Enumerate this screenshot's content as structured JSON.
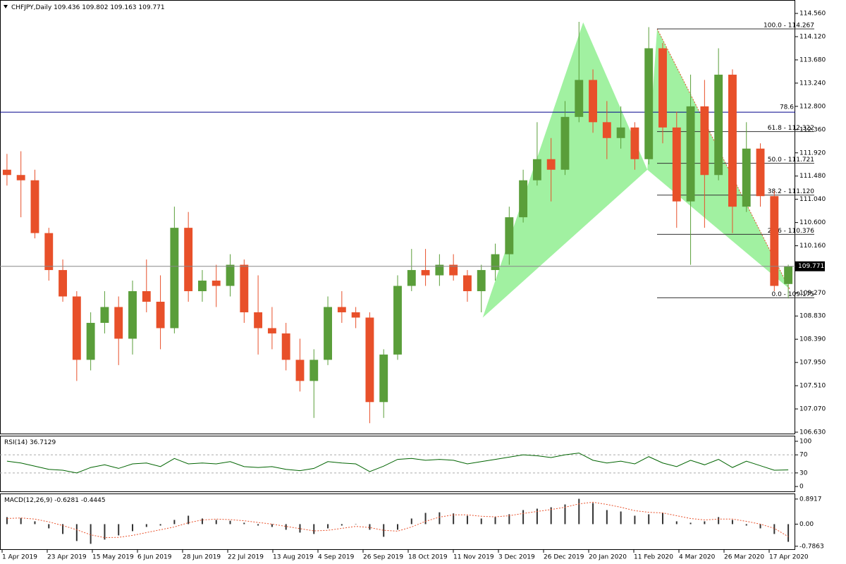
{
  "chart_data": {
    "type": "candlestick",
    "title": "CHFJPY,Daily",
    "up_color": "#5a9e3a",
    "down_color": "#e8502a",
    "open": [
      111.6,
      111.5,
      111.4,
      110.4,
      109.7,
      109.2,
      108.0,
      108.7,
      109.0,
      108.4,
      109.3,
      109.1,
      108.6,
      110.5,
      109.3,
      109.5,
      109.4,
      109.8,
      108.9,
      108.6,
      108.5,
      108.0,
      107.6,
      108.0,
      109.0,
      108.9,
      108.8,
      107.2,
      108.1,
      109.4,
      109.7,
      109.6,
      109.8,
      109.6,
      109.3,
      109.7,
      110.0,
      110.7,
      111.4,
      111.8,
      111.6,
      112.6,
      113.3,
      112.5,
      112.2,
      112.4,
      111.8,
      113.9,
      112.4,
      111.0,
      112.8,
      111.5,
      113.4,
      110.9,
      112.0,
      111.1,
      109.436
    ],
    "high": [
      111.9,
      111.95,
      111.6,
      110.5,
      109.9,
      109.3,
      108.9,
      109.3,
      109.2,
      109.5,
      109.9,
      109.6,
      110.9,
      110.8,
      109.7,
      109.8,
      110.0,
      109.9,
      109.6,
      109.0,
      108.7,
      108.4,
      108.2,
      109.2,
      109.3,
      109.0,
      108.9,
      108.2,
      109.6,
      110.1,
      110.1,
      110.0,
      110.0,
      109.7,
      109.8,
      110.2,
      110.9,
      111.6,
      112.5,
      112.2,
      112.9,
      114.4,
      113.5,
      112.9,
      112.8,
      112.5,
      114.3,
      114.0,
      112.7,
      113.4,
      113.3,
      113.9,
      113.5,
      112.5,
      112.1,
      111.2,
      109.802
    ],
    "low": [
      111.3,
      110.7,
      110.3,
      109.5,
      109.1,
      107.6,
      107.8,
      108.5,
      107.9,
      108.1,
      108.9,
      108.2,
      108.5,
      109.1,
      109.1,
      109.0,
      109.2,
      108.7,
      108.1,
      108.2,
      107.8,
      107.4,
      106.9,
      107.9,
      108.7,
      108.6,
      106.8,
      106.9,
      108.0,
      109.3,
      109.4,
      109.4,
      109.5,
      109.1,
      108.9,
      109.5,
      109.8,
      110.6,
      111.3,
      111.0,
      111.5,
      112.5,
      112.3,
      111.8,
      112.0,
      111.6,
      111.7,
      112.1,
      110.5,
      109.8,
      110.5,
      111.4,
      110.4,
      110.8,
      110.9,
      109.3,
      109.163
    ],
    "close": [
      111.5,
      111.4,
      110.4,
      109.7,
      109.2,
      108.0,
      108.7,
      109.0,
      108.4,
      109.3,
      109.1,
      108.6,
      110.5,
      109.3,
      109.5,
      109.4,
      109.8,
      108.9,
      108.6,
      108.5,
      108.0,
      107.6,
      108.0,
      109.0,
      108.9,
      108.8,
      107.2,
      108.1,
      109.4,
      109.7,
      109.6,
      109.8,
      109.6,
      109.3,
      109.7,
      110.0,
      110.7,
      111.4,
      111.8,
      111.6,
      112.6,
      113.3,
      112.5,
      112.2,
      112.4,
      111.8,
      113.9,
      112.4,
      111.0,
      112.8,
      111.5,
      113.4,
      110.9,
      112.0,
      111.1,
      109.4,
      109.771
    ],
    "ylim": [
      106.59,
      114.774
    ],
    "yticks": [
      {
        "value": 114.56,
        "label": "114.560"
      },
      {
        "value": 114.12,
        "label": "114.120"
      },
      {
        "value": 113.68,
        "label": "113.680"
      },
      {
        "value": 113.24,
        "label": "113.240"
      },
      {
        "value": 112.8,
        "label": "112.800"
      },
      {
        "value": 112.36,
        "label": "112.360"
      },
      {
        "value": 111.92,
        "label": "111.920"
      },
      {
        "value": 111.48,
        "label": "111.480"
      },
      {
        "value": 111.04,
        "label": "111.040"
      },
      {
        "value": 110.6,
        "label": "110.600"
      },
      {
        "value": 110.16,
        "label": "110.160"
      },
      {
        "value": 109.27,
        "label": "109.270"
      },
      {
        "value": 108.83,
        "label": "108.830"
      },
      {
        "value": 108.39,
        "label": "108.390"
      },
      {
        "value": 107.95,
        "label": "107.950"
      },
      {
        "value": 107.51,
        "label": "107.510"
      },
      {
        "value": 107.07,
        "label": "107.070"
      },
      {
        "value": 106.63,
        "label": "106.630"
      }
    ],
    "xlabels": [
      "1 Apr 2019",
      "23 Apr 2019",
      "15 May 2019",
      "6 Jun 2019",
      "28 Jun 2019",
      "22 Jul 2019",
      "13 Aug 2019",
      "4 Sep 2019",
      "26 Sep 2019",
      "18 Oct 2019",
      "11 Nov 2019",
      "3 Dec 2019",
      "26 Dec 2019",
      "20 Jan 2020",
      "11 Feb 2020",
      "4 Mar 2020",
      "26 Mar 2020",
      "17 Apr 2020"
    ],
    "hline": {
      "label": "78.6",
      "value": 112.69
    },
    "fib": [
      {
        "label": "100.0 - 114.267",
        "value": 114.267
      },
      {
        "label": "61.8 - 112.322",
        "value": 112.322
      },
      {
        "label": "50.0 - 111.721",
        "value": 111.721
      },
      {
        "label": "38.2 - 111.120",
        "value": 111.12
      },
      {
        "label": "23.6 - 110.376",
        "value": 110.376
      },
      {
        "label": "0.0 - 109.175",
        "value": 109.175
      }
    ],
    "pattern": {
      "color": "#90ee90",
      "index": [
        34.1,
        41.3,
        45.9,
        46.6,
        56.1
      ],
      "price": [
        108.8,
        114.39,
        111.6,
        114.27,
        109.34
      ]
    },
    "rsi": {
      "name": "RSI(14)",
      "color": "#006400",
      "values": [
        56,
        52,
        45,
        38,
        36,
        30,
        42,
        48,
        40,
        50,
        52,
        44,
        62,
        50,
        52,
        50,
        55,
        44,
        42,
        44,
        38,
        35,
        40,
        55,
        52,
        50,
        33,
        45,
        60,
        62,
        58,
        60,
        58,
        50,
        55,
        60,
        65,
        70,
        68,
        64,
        70,
        74,
        58,
        52,
        56,
        50,
        66,
        52,
        44,
        58,
        48,
        60,
        42,
        56,
        46,
        36,
        36.7129
      ],
      "ylim": [
        -10.8,
        110.8
      ],
      "yticks": [
        100,
        70,
        30,
        0
      ],
      "levels": [
        70,
        30
      ]
    },
    "macd": {
      "name": "MACD(12,26,9)",
      "color": "#333333",
      "signal_color": "#e8502a",
      "values": [
        0.25,
        0.22,
        0.1,
        -0.15,
        -0.35,
        -0.6,
        -0.7,
        -0.55,
        -0.4,
        -0.25,
        -0.1,
        -0.05,
        0.15,
        0.3,
        0.2,
        0.15,
        0.12,
        0.05,
        -0.05,
        -0.1,
        -0.2,
        -0.3,
        -0.35,
        -0.15,
        -0.05,
        0,
        -0.2,
        -0.45,
        -0.2,
        0.2,
        0.4,
        0.42,
        0.38,
        0.3,
        0.2,
        0.25,
        0.35,
        0.5,
        0.55,
        0.6,
        0.7,
        0.9,
        0.75,
        0.5,
        0.45,
        0.3,
        0.35,
        0.4,
        0.1,
        0.05,
        0.1,
        0.25,
        0.15,
        -0.05,
        -0.15,
        -0.35,
        -0.6281
      ],
      "signal": [
        0.2,
        0.22,
        0.18,
        0.08,
        -0.05,
        -0.2,
        -0.38,
        -0.48,
        -0.47,
        -0.4,
        -0.3,
        -0.2,
        -0.1,
        0.05,
        0.15,
        0.18,
        0.16,
        0.12,
        0.06,
        0,
        -0.08,
        -0.16,
        -0.24,
        -0.22,
        -0.15,
        -0.08,
        -0.12,
        -0.22,
        -0.25,
        -0.1,
        0.1,
        0.25,
        0.33,
        0.33,
        0.28,
        0.26,
        0.3,
        0.38,
        0.45,
        0.52,
        0.6,
        0.72,
        0.78,
        0.7,
        0.6,
        0.48,
        0.42,
        0.4,
        0.3,
        0.2,
        0.15,
        0.18,
        0.18,
        0.1,
        0,
        -0.15,
        -0.4445
      ],
      "ylim": [
        -0.916,
        1.064
      ],
      "yticks": [
        0.8917,
        {
          "value": 0,
          "label": "0.00"
        },
        -0.7863
      ]
    }
  }
}
